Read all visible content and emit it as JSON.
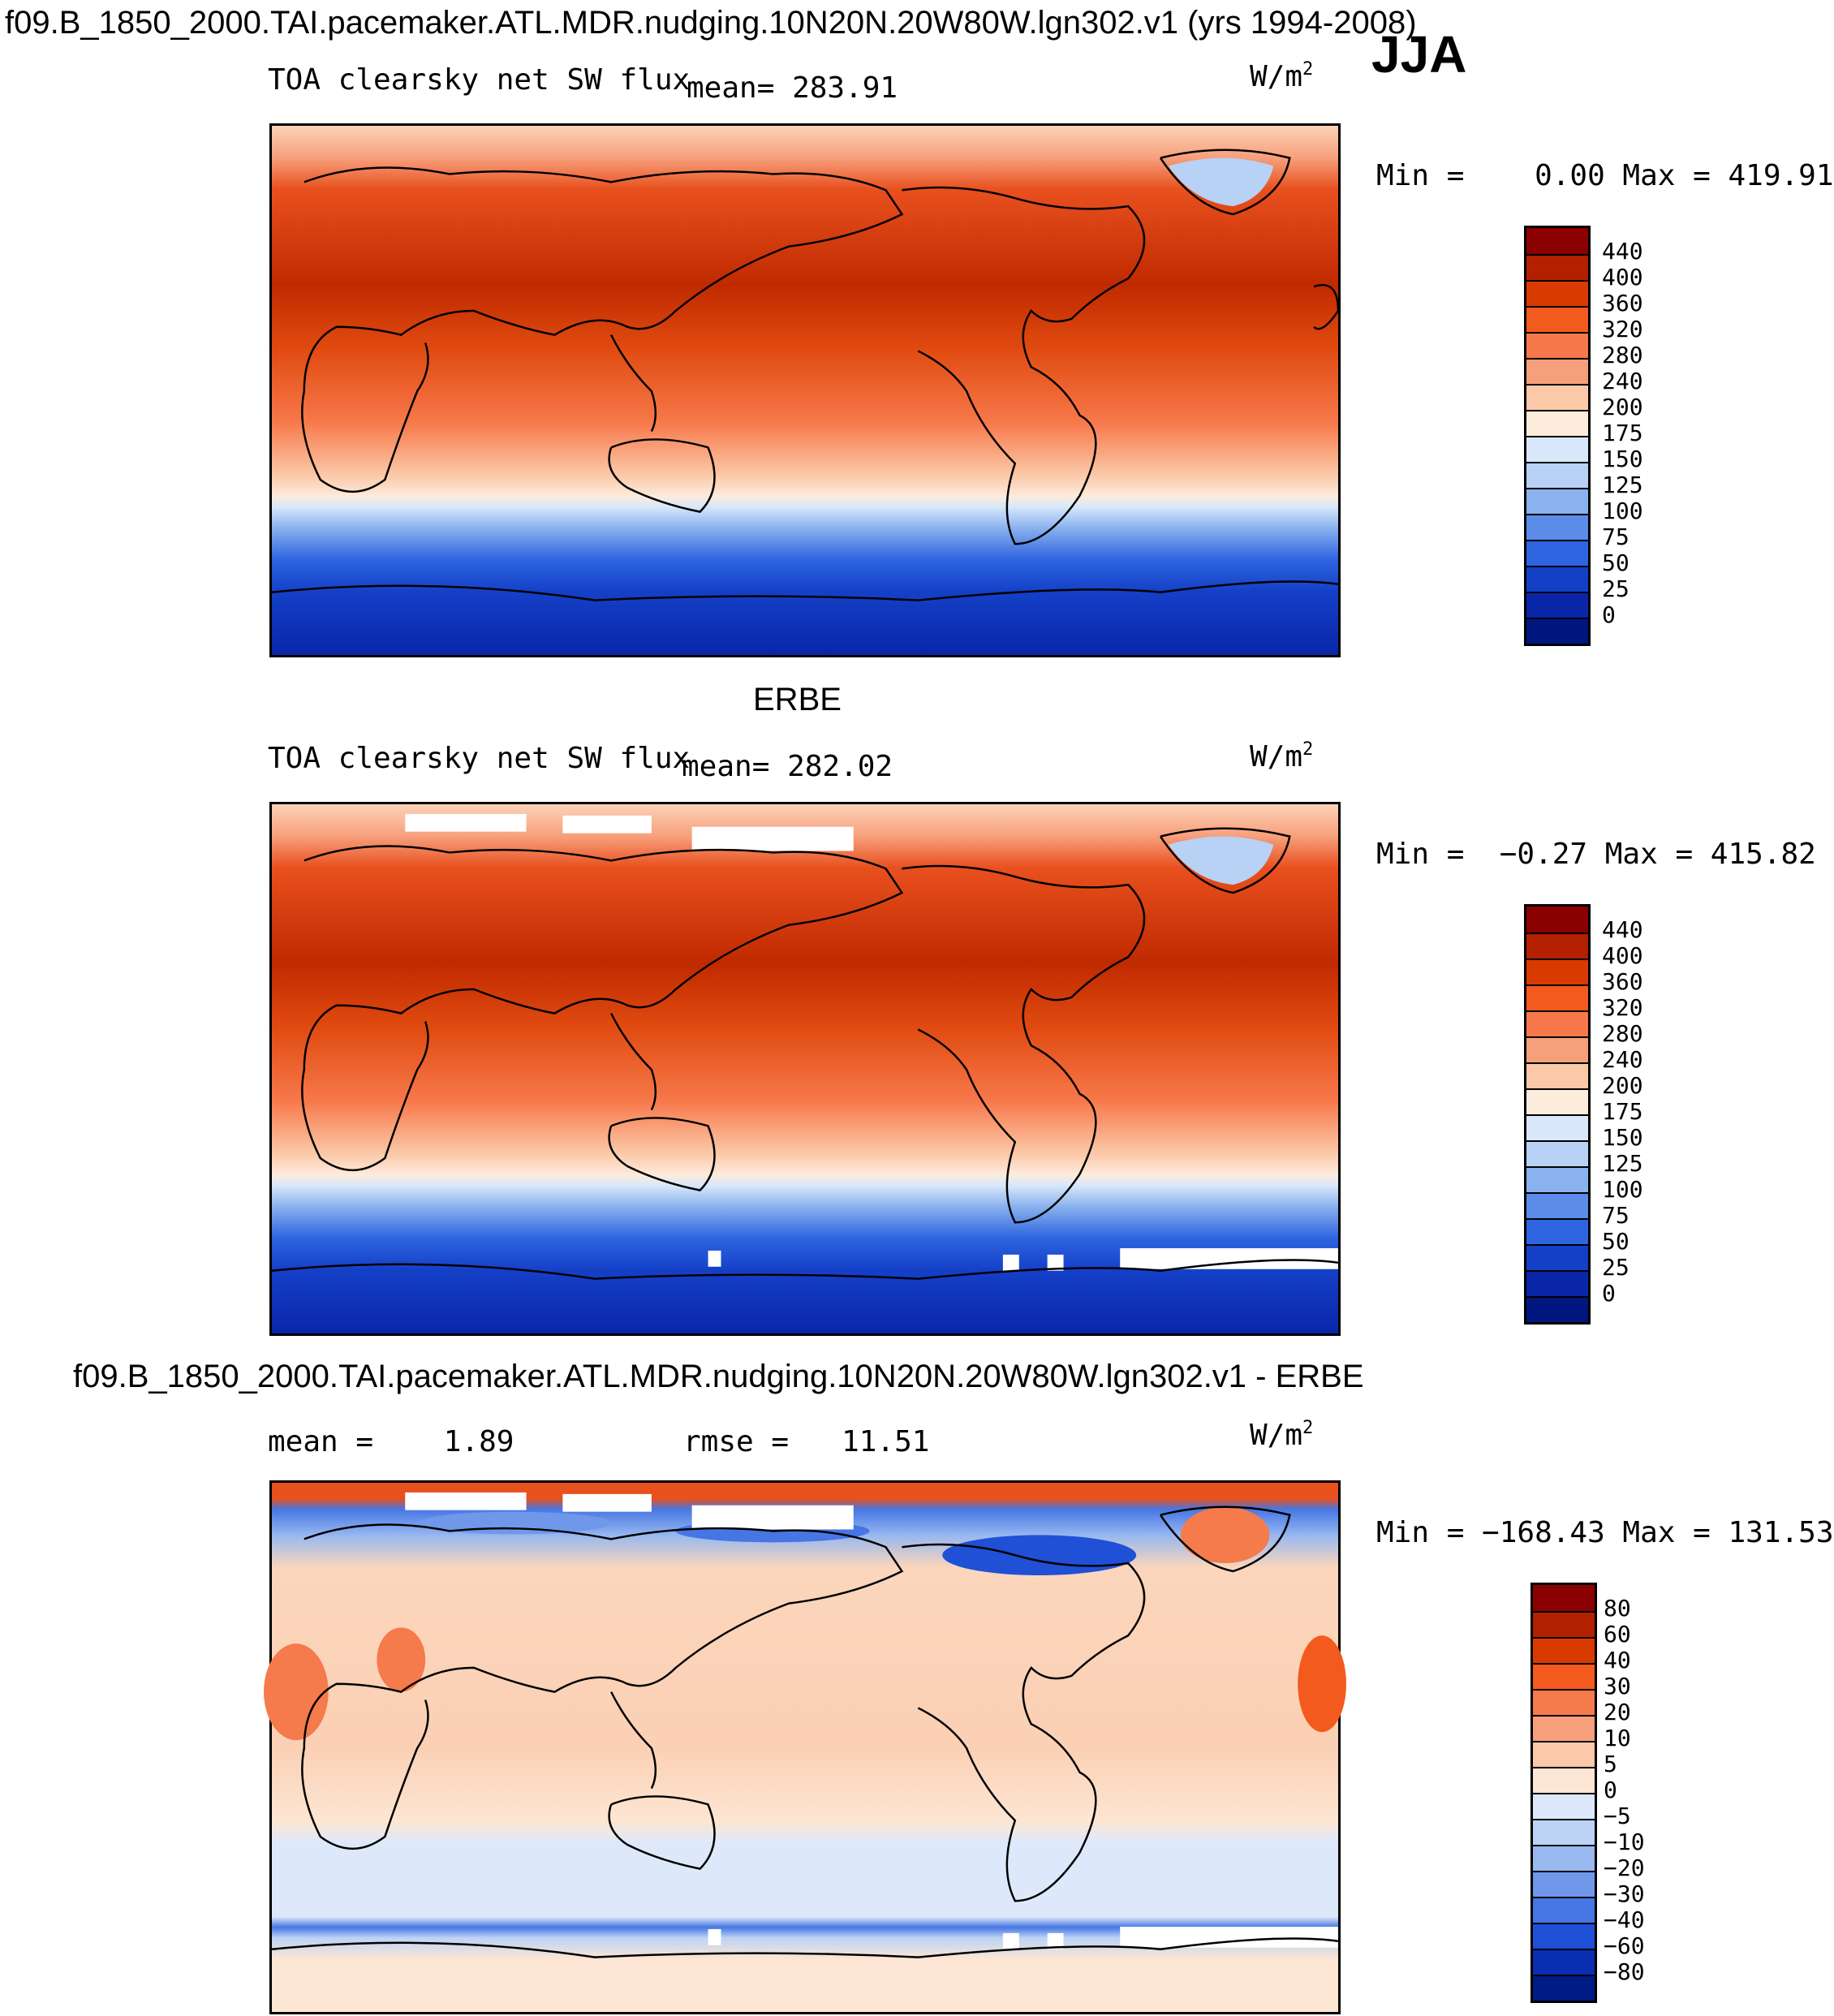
{
  "figure": {
    "title": "f09.B_1850_2000.TAI.pacemaker.ATL.MDR.nudging.10N20N.20W80W.lgn302.v1 (yrs 1994-2008)",
    "season": "JJA"
  },
  "panel_top": {
    "variable": "TOA clearsky net SW flux",
    "mean_label": "mean=",
    "mean_value": "283.91",
    "units_base": "W/m",
    "units_exp": "2",
    "minmax": "Min =    0.00 Max = 419.91",
    "colorbar_labels": [
      "440",
      "400",
      "360",
      "320",
      "280",
      "240",
      "200",
      "175",
      "150",
      "125",
      "100",
      "75",
      "50",
      "25",
      "0"
    ]
  },
  "panel_mid": {
    "dataset": "ERBE",
    "variable": "TOA clearsky net SW flux",
    "mean_label": "mean=",
    "mean_value": "282.02",
    "units_base": "W/m",
    "units_exp": "2",
    "minmax": "Min =  −0.27 Max = 415.82",
    "colorbar_labels": [
      "440",
      "400",
      "360",
      "320",
      "280",
      "240",
      "200",
      "175",
      "150",
      "125",
      "100",
      "75",
      "50",
      "25",
      "0"
    ]
  },
  "panel_diff": {
    "title": "f09.B_1850_2000.TAI.pacemaker.ATL.MDR.nudging.10N20N.20W80W.lgn302.v1 - ERBE",
    "mean_label": "mean =",
    "mean_value": "1.89",
    "rmse_label": "rmse =",
    "rmse_value": "11.51",
    "units_base": "W/m",
    "units_exp": "2",
    "minmax": "Min = −168.43 Max = 131.53",
    "colorbar_labels": [
      "80",
      "60",
      "40",
      "30",
      "20",
      "10",
      "5",
      "0",
      "−5",
      "−10",
      "−20",
      "−30",
      "−40",
      "−60",
      "−80"
    ]
  },
  "colors": {
    "abs_scale": [
      "#8b0000",
      "#b22000",
      "#d93a00",
      "#f25a1e",
      "#f7784a",
      "#f5a07a",
      "#fbc8a8",
      "#fdebdc",
      "#d8e8fa",
      "#b8d2f5",
      "#8ab2ee",
      "#5a8ce8",
      "#2e64e0",
      "#1440c8",
      "#0a26a8",
      "#001780"
    ],
    "diff_scale": [
      "#8b0000",
      "#b22000",
      "#d93a00",
      "#f25a1e",
      "#f57a4c",
      "#f7a07c",
      "#fbc8aa",
      "#fde6d4",
      "#dde9fa",
      "#bcd3f6",
      "#98b8f0",
      "#6f98ea",
      "#4676e3",
      "#1f50d6",
      "#0a2eb0",
      "#001b85"
    ]
  }
}
